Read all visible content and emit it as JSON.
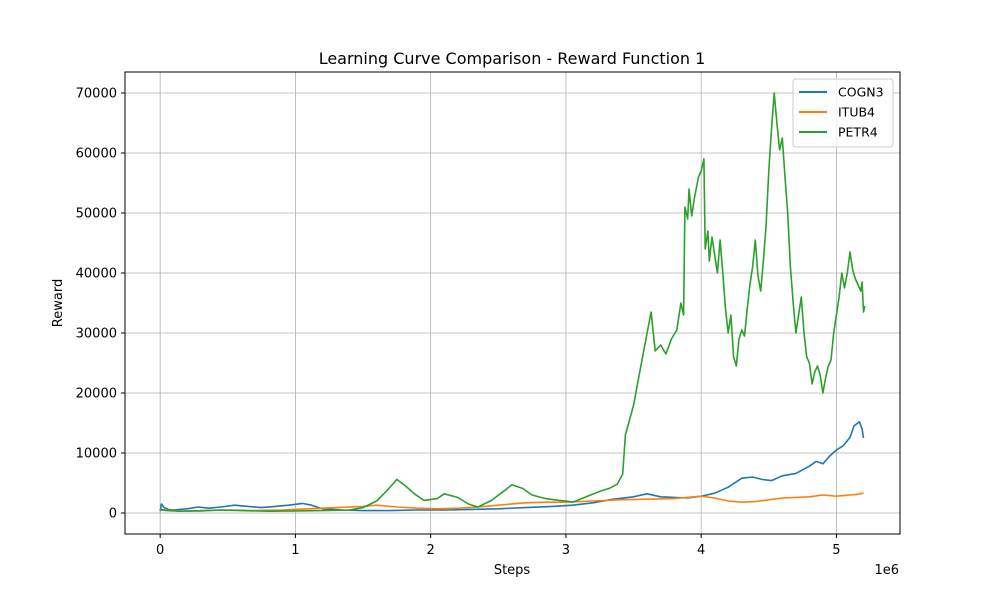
{
  "chart_data": {
    "type": "line",
    "title": "Learning Curve Comparison - Reward Function 1",
    "xlabel": "Steps",
    "ylabel": "Reward",
    "x_offset_label": "1e6",
    "xlim": [
      -0.26,
      5.47
    ],
    "ylim": [
      -3500,
      73500
    ],
    "x_ticks": [
      0,
      1,
      2,
      3,
      4,
      5
    ],
    "y_ticks": [
      0,
      10000,
      20000,
      30000,
      40000,
      50000,
      60000,
      70000
    ],
    "grid": true,
    "legend_position": "top-right",
    "series": [
      {
        "name": "COGN3",
        "color": "#1f77b4",
        "points": [
          [
            0,
            300
          ],
          [
            0.01,
            1500
          ],
          [
            0.03,
            900
          ],
          [
            0.06,
            600
          ],
          [
            0.1,
            500
          ],
          [
            0.2,
            700
          ],
          [
            0.28,
            1000
          ],
          [
            0.36,
            800
          ],
          [
            0.45,
            1000
          ],
          [
            0.55,
            1300
          ],
          [
            0.65,
            1100
          ],
          [
            0.75,
            900
          ],
          [
            0.85,
            1100
          ],
          [
            0.95,
            1300
          ],
          [
            1.05,
            1600
          ],
          [
            1.12,
            1300
          ],
          [
            1.2,
            700
          ],
          [
            1.35,
            500
          ],
          [
            1.5,
            400
          ],
          [
            1.7,
            400
          ],
          [
            1.9,
            500
          ],
          [
            2.1,
            500
          ],
          [
            2.3,
            600
          ],
          [
            2.5,
            700
          ],
          [
            2.7,
            900
          ],
          [
            2.9,
            1100
          ],
          [
            3.05,
            1300
          ],
          [
            3.2,
            1700
          ],
          [
            3.35,
            2300
          ],
          [
            3.5,
            2700
          ],
          [
            3.6,
            3200
          ],
          [
            3.7,
            2700
          ],
          [
            3.8,
            2600
          ],
          [
            3.9,
            2500
          ],
          [
            4.0,
            2800
          ],
          [
            4.1,
            3300
          ],
          [
            4.2,
            4300
          ],
          [
            4.3,
            5800
          ],
          [
            4.38,
            6000
          ],
          [
            4.45,
            5600
          ],
          [
            4.52,
            5400
          ],
          [
            4.6,
            6200
          ],
          [
            4.7,
            6600
          ],
          [
            4.8,
            7800
          ],
          [
            4.85,
            8600
          ],
          [
            4.9,
            8200
          ],
          [
            4.95,
            9500
          ],
          [
            5.0,
            10500
          ],
          [
            5.05,
            11200
          ],
          [
            5.1,
            12600
          ],
          [
            5.13,
            14500
          ],
          [
            5.17,
            15200
          ],
          [
            5.19,
            14000
          ],
          [
            5.2,
            12500
          ]
        ]
      },
      {
        "name": "ITUB4",
        "color": "#ff7f0e",
        "points": [
          [
            0,
            600
          ],
          [
            0.05,
            500
          ],
          [
            0.15,
            300
          ],
          [
            0.3,
            400
          ],
          [
            0.5,
            500
          ],
          [
            0.7,
            400
          ],
          [
            0.9,
            500
          ],
          [
            1.1,
            700
          ],
          [
            1.3,
            900
          ],
          [
            1.5,
            1100
          ],
          [
            1.6,
            1300
          ],
          [
            1.75,
            1000
          ],
          [
            1.9,
            800
          ],
          [
            2.05,
            700
          ],
          [
            2.2,
            800
          ],
          [
            2.35,
            1000
          ],
          [
            2.5,
            1300
          ],
          [
            2.7,
            1700
          ],
          [
            2.85,
            1800
          ],
          [
            3.0,
            1800
          ],
          [
            3.2,
            2000
          ],
          [
            3.4,
            2200
          ],
          [
            3.6,
            2300
          ],
          [
            3.8,
            2400
          ],
          [
            4.0,
            2800
          ],
          [
            4.1,
            2500
          ],
          [
            4.2,
            2000
          ],
          [
            4.3,
            1800
          ],
          [
            4.4,
            1900
          ],
          [
            4.5,
            2200
          ],
          [
            4.6,
            2500
          ],
          [
            4.7,
            2600
          ],
          [
            4.8,
            2700
          ],
          [
            4.9,
            3000
          ],
          [
            5.0,
            2800
          ],
          [
            5.1,
            3000
          ],
          [
            5.15,
            3100
          ],
          [
            5.2,
            3300
          ]
        ]
      },
      {
        "name": "PETR4",
        "color": "#2ca02c",
        "points": [
          [
            0,
            500
          ],
          [
            0.05,
            400
          ],
          [
            0.15,
            300
          ],
          [
            0.3,
            350
          ],
          [
            0.45,
            500
          ],
          [
            0.6,
            400
          ],
          [
            0.8,
            300
          ],
          [
            1.0,
            350
          ],
          [
            1.2,
            400
          ],
          [
            1.4,
            500
          ],
          [
            1.5,
            900
          ],
          [
            1.6,
            2000
          ],
          [
            1.68,
            3800
          ],
          [
            1.75,
            5600
          ],
          [
            1.82,
            4400
          ],
          [
            1.88,
            3200
          ],
          [
            1.95,
            2100
          ],
          [
            2.05,
            2400
          ],
          [
            2.1,
            3200
          ],
          [
            2.2,
            2600
          ],
          [
            2.28,
            1500
          ],
          [
            2.35,
            1000
          ],
          [
            2.45,
            2100
          ],
          [
            2.55,
            3800
          ],
          [
            2.6,
            4700
          ],
          [
            2.68,
            4100
          ],
          [
            2.75,
            3000
          ],
          [
            2.85,
            2400
          ],
          [
            2.95,
            2100
          ],
          [
            3.0,
            2000
          ],
          [
            3.05,
            1800
          ],
          [
            3.15,
            2700
          ],
          [
            3.25,
            3600
          ],
          [
            3.32,
            4100
          ],
          [
            3.38,
            4800
          ],
          [
            3.42,
            6500
          ],
          [
            3.44,
            13000
          ],
          [
            3.5,
            18000
          ],
          [
            3.55,
            24000
          ],
          [
            3.6,
            30000
          ],
          [
            3.63,
            33500
          ],
          [
            3.66,
            27000
          ],
          [
            3.7,
            28000
          ],
          [
            3.74,
            26500
          ],
          [
            3.78,
            29000
          ],
          [
            3.82,
            30500
          ],
          [
            3.85,
            35000
          ],
          [
            3.87,
            33000
          ],
          [
            3.88,
            51000
          ],
          [
            3.9,
            49000
          ],
          [
            3.91,
            54000
          ],
          [
            3.93,
            49500
          ],
          [
            3.95,
            52500
          ],
          [
            3.98,
            56000
          ],
          [
            4.0,
            57000
          ],
          [
            4.02,
            59000
          ],
          [
            4.03,
            44000
          ],
          [
            4.05,
            47000
          ],
          [
            4.06,
            42000
          ],
          [
            4.08,
            46000
          ],
          [
            4.1,
            43000
          ],
          [
            4.12,
            40000
          ],
          [
            4.14,
            45500
          ],
          [
            4.16,
            40000
          ],
          [
            4.18,
            34000
          ],
          [
            4.2,
            30000
          ],
          [
            4.22,
            33000
          ],
          [
            4.24,
            26000
          ],
          [
            4.26,
            24500
          ],
          [
            4.28,
            29000
          ],
          [
            4.3,
            30500
          ],
          [
            4.32,
            29500
          ],
          [
            4.34,
            34000
          ],
          [
            4.36,
            38000
          ],
          [
            4.38,
            41000
          ],
          [
            4.4,
            45500
          ],
          [
            4.42,
            39500
          ],
          [
            4.44,
            37000
          ],
          [
            4.46,
            42000
          ],
          [
            4.48,
            48000
          ],
          [
            4.5,
            57000
          ],
          [
            4.52,
            64000
          ],
          [
            4.54,
            70000
          ],
          [
            4.56,
            65000
          ],
          [
            4.58,
            60500
          ],
          [
            4.6,
            62500
          ],
          [
            4.62,
            56000
          ],
          [
            4.64,
            50000
          ],
          [
            4.66,
            41000
          ],
          [
            4.68,
            35000
          ],
          [
            4.7,
            30000
          ],
          [
            4.72,
            33000
          ],
          [
            4.74,
            36000
          ],
          [
            4.76,
            30000
          ],
          [
            4.78,
            26000
          ],
          [
            4.8,
            25000
          ],
          [
            4.82,
            21500
          ],
          [
            4.84,
            23500
          ],
          [
            4.86,
            24500
          ],
          [
            4.88,
            23000
          ],
          [
            4.9,
            20000
          ],
          [
            4.92,
            22500
          ],
          [
            4.94,
            24500
          ],
          [
            4.96,
            25500
          ],
          [
            4.98,
            30000
          ],
          [
            5.0,
            33000
          ],
          [
            5.02,
            36000
          ],
          [
            5.04,
            40000
          ],
          [
            5.06,
            37500
          ],
          [
            5.08,
            40000
          ],
          [
            5.1,
            43500
          ],
          [
            5.12,
            40500
          ],
          [
            5.14,
            39000
          ],
          [
            5.16,
            38000
          ],
          [
            5.18,
            37000
          ],
          [
            5.19,
            38500
          ],
          [
            5.2,
            33500
          ],
          [
            5.21,
            34500
          ]
        ]
      }
    ]
  }
}
